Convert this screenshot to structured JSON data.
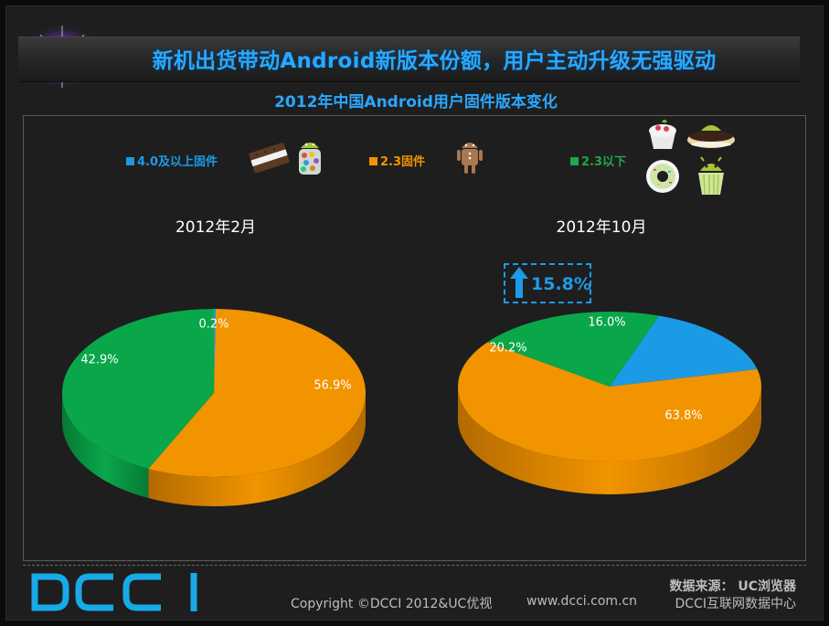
{
  "header": {
    "title": "新机出货带动Android新版本份额，用户主动升级无强驱动",
    "subtitle": "2012年中国Android用户固件版本变化"
  },
  "legend": [
    {
      "label": "4.0及以上固件",
      "color": "#1b9be6",
      "icons": [
        "ice-cream-sandwich-icon",
        "jelly-bean-icon"
      ]
    },
    {
      "label": "2.3固件",
      "color": "#f29400",
      "icons": [
        "gingerbread-icon"
      ]
    },
    {
      "label": "2.3以下",
      "color": "#1fa84a",
      "icons": [
        "froyo-icon",
        "eclair-icon",
        "donut-icon",
        "cupcake-icon"
      ]
    }
  ],
  "change_annotation": {
    "text": "15.8%",
    "direction": "up",
    "icon": "up-arrow-icon"
  },
  "footer": {
    "logo_text": "DCCI",
    "source": "数据来源： UC浏览器",
    "copyright": "Copyright ©DCCI 2012&UC优视",
    "website": "www.dcci.com.cn",
    "org": "DCCI互联网数据中心"
  },
  "colors": {
    "blue": "#1b9be6",
    "orange": "#f29400",
    "green": "#0aa64a",
    "background": "#1e1e1e"
  },
  "chart_data": [
    {
      "type": "pie",
      "title": "2012年2月",
      "labels": [
        "4.0及以上固件",
        "2.3固件",
        "2.3以下"
      ],
      "values": [
        0.2,
        56.9,
        42.9
      ],
      "value_labels": [
        "0.2%",
        "56.9%",
        "42.9%"
      ],
      "style": "3d"
    },
    {
      "type": "pie",
      "title": "2012年10月",
      "labels": [
        "4.0及以上固件",
        "2.3固件",
        "2.3以下"
      ],
      "values": [
        16.0,
        63.8,
        20.2
      ],
      "value_labels": [
        "16.0%",
        "63.8%",
        "20.2%"
      ],
      "style": "3d"
    }
  ]
}
